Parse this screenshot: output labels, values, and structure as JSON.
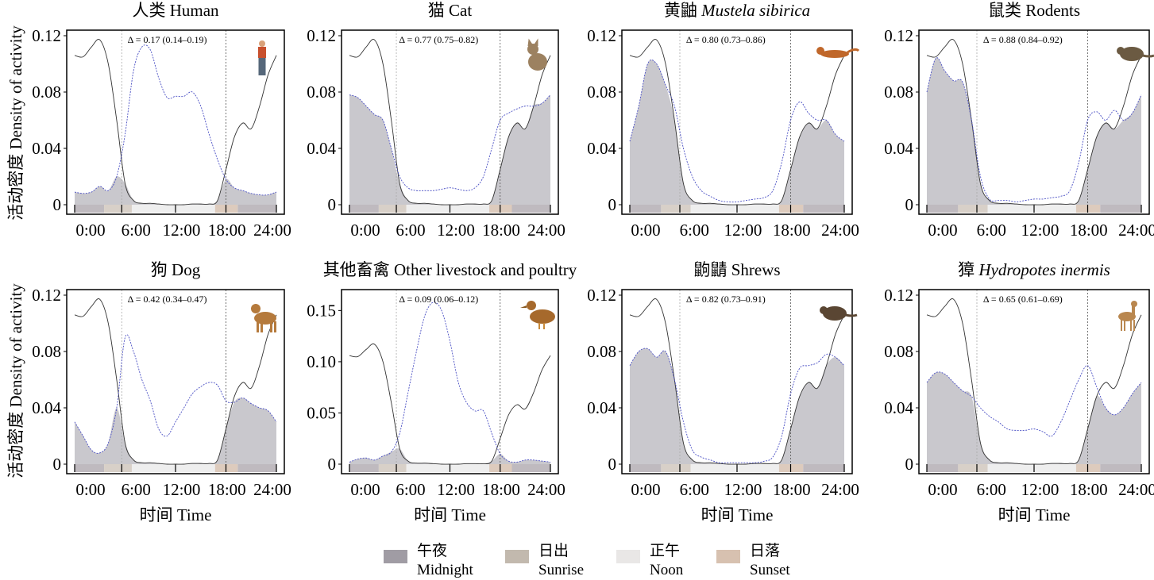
{
  "y_axis_label": "活动密度 Density of activity",
  "x_axis_label": "时间 Time",
  "legend": [
    {
      "zh": "午夜",
      "en": "Midnight",
      "color": "#a09ca4"
    },
    {
      "zh": "日出",
      "en": "Sunrise",
      "color": "#c2b9ae"
    },
    {
      "zh": "正午",
      "en": "Noon",
      "color": "#e9e7e6"
    },
    {
      "zh": "日落",
      "en": "Sunset",
      "color": "#d7c1b0"
    }
  ],
  "chart_data": {
    "type": "line",
    "x_ticks": [
      "0:00",
      "6:00",
      "12:00",
      "18:00",
      "24:00"
    ],
    "x": [
      0,
      1,
      2,
      3,
      4,
      5,
      6,
      7,
      8,
      9,
      10,
      11,
      12,
      13,
      14,
      15,
      16,
      17,
      18,
      19,
      20,
      21,
      22,
      23,
      24
    ],
    "reference_series": {
      "style": "solid black",
      "values": [
        0.106,
        0.105,
        0.112,
        0.117,
        0.1,
        0.06,
        0.015,
        0.003,
        0.001,
        0.001,
        0.0005,
        0,
        0,
        0,
        0.0005,
        0.0005,
        0.0005,
        0.003,
        0.025,
        0.048,
        0.058,
        0.054,
        0.07,
        0.092,
        0.106
      ]
    },
    "sunrise_hour": 5.6,
    "sunset_hour": 18,
    "period_bar": [
      {
        "period": "Midnight",
        "from": 0,
        "to": 3.5
      },
      {
        "period": "Sunrise",
        "from": 3.5,
        "to": 6.8
      },
      {
        "period": "Noon",
        "from": 6.8,
        "to": 16.7
      },
      {
        "period": "Sunset",
        "from": 16.7,
        "to": 19.4
      },
      {
        "period": "Midnight",
        "from": 19.4,
        "to": 24
      }
    ],
    "panels": [
      {
        "title_zh": "人类",
        "title_en": "Human",
        "italic": false,
        "delta": "Δ = 0.17 (0.14–0.19)",
        "ylim": [
          0,
          0.12
        ],
        "yticks": [
          "0",
          "0.04",
          "0.08",
          "0.12"
        ],
        "ytick_values": [
          0,
          0.04,
          0.08,
          0.12
        ],
        "icon": "human-icon",
        "icon_color": "#c8502e",
        "values": [
          0.009,
          0.008,
          0.009,
          0.013,
          0.01,
          0.02,
          0.05,
          0.095,
          0.112,
          0.11,
          0.09,
          0.076,
          0.077,
          0.077,
          0.08,
          0.07,
          0.05,
          0.032,
          0.018,
          0.012,
          0.01,
          0.008,
          0.007,
          0.007,
          0.009
        ]
      },
      {
        "title_zh": "猫",
        "title_en": "Cat",
        "italic": false,
        "delta": "Δ = 0.77 (0.75–0.82)",
        "ylim": [
          0,
          0.12
        ],
        "yticks": [
          "0",
          "0.04",
          "0.08",
          "0.12"
        ],
        "ytick_values": [
          0,
          0.04,
          0.08,
          0.12
        ],
        "icon": "cat-icon",
        "icon_color": "#9c8160",
        "values": [
          0.078,
          0.076,
          0.07,
          0.064,
          0.06,
          0.04,
          0.02,
          0.012,
          0.01,
          0.01,
          0.01,
          0.011,
          0.012,
          0.011,
          0.01,
          0.012,
          0.02,
          0.04,
          0.06,
          0.065,
          0.068,
          0.07,
          0.07,
          0.072,
          0.078
        ]
      },
      {
        "title_zh": "黄鼬",
        "title_en": "Mustela sibirica",
        "italic": true,
        "delta": "Δ = 0.80 (0.73–0.86)",
        "ylim": [
          0,
          0.12
        ],
        "yticks": [
          "0",
          "0.04",
          "0.08",
          "0.12"
        ],
        "ytick_values": [
          0,
          0.04,
          0.08,
          0.12
        ],
        "icon": "weasel-icon",
        "icon_color": "#c0672a",
        "values": [
          0.045,
          0.07,
          0.1,
          0.1,
          0.085,
          0.07,
          0.04,
          0.02,
          0.01,
          0.006,
          0.003,
          0.002,
          0.002,
          0.003,
          0.004,
          0.005,
          0.01,
          0.03,
          0.06,
          0.073,
          0.065,
          0.06,
          0.06,
          0.05,
          0.045
        ]
      },
      {
        "title_zh": "鼠类",
        "title_en": "Rodents",
        "italic": false,
        "delta": "Δ = 0.88 (0.84–0.92)",
        "ylim": [
          0,
          0.12
        ],
        "yticks": [
          "0",
          "0.04",
          "0.08",
          "0.12"
        ],
        "ytick_values": [
          0,
          0.04,
          0.08,
          0.12
        ],
        "icon": "rodent-icon",
        "icon_color": "#6b5a42",
        "values": [
          0.08,
          0.104,
          0.095,
          0.088,
          0.087,
          0.06,
          0.02,
          0.004,
          0.003,
          0.003,
          0.002,
          0.003,
          0.004,
          0.004,
          0.005,
          0.006,
          0.01,
          0.03,
          0.06,
          0.066,
          0.06,
          0.067,
          0.06,
          0.065,
          0.078
        ]
      },
      {
        "title_zh": "狗",
        "title_en": "Dog",
        "italic": false,
        "delta": "Δ = 0.42 (0.34–0.47)",
        "ylim": [
          0,
          0.12
        ],
        "yticks": [
          "0",
          "0.04",
          "0.08",
          "0.12"
        ],
        "ytick_values": [
          0,
          0.04,
          0.08,
          0.12
        ],
        "icon": "dog-icon",
        "icon_color": "#b57a3c",
        "values": [
          0.03,
          0.02,
          0.01,
          0.008,
          0.015,
          0.04,
          0.09,
          0.08,
          0.06,
          0.045,
          0.025,
          0.02,
          0.03,
          0.04,
          0.05,
          0.055,
          0.058,
          0.056,
          0.045,
          0.044,
          0.047,
          0.043,
          0.04,
          0.038,
          0.03
        ]
      },
      {
        "title_zh": "其他畜禽",
        "title_en": "Other livestock and poultry",
        "italic": false,
        "delta": "Δ = 0.09 (0.06–0.12)",
        "ylim": [
          0,
          0.165
        ],
        "yticks": [
          "0",
          "0.05",
          "0.10",
          "0.15"
        ],
        "ytick_values": [
          0,
          0.05,
          0.1,
          0.15
        ],
        "icon": "duck-icon",
        "icon_color": "#a6692c",
        "values": [
          0.002,
          0.005,
          0.006,
          0.004,
          0.008,
          0.012,
          0.03,
          0.07,
          0.11,
          0.145,
          0.158,
          0.15,
          0.12,
          0.08,
          0.06,
          0.052,
          0.052,
          0.03,
          0.01,
          0.003,
          0.002,
          0.004,
          0.004,
          0.003,
          0.002
        ]
      },
      {
        "title_zh": "鼩鼱",
        "title_en": "Shrews",
        "italic": false,
        "delta": "Δ = 0.82 (0.73–0.91)",
        "ylim": [
          0,
          0.12
        ],
        "yticks": [
          "0",
          "0.04",
          "0.08",
          "0.12"
        ],
        "ytick_values": [
          0,
          0.04,
          0.08,
          0.12
        ],
        "icon": "shrew-icon",
        "icon_color": "#5a4633",
        "values": [
          0.07,
          0.08,
          0.082,
          0.076,
          0.08,
          0.06,
          0.03,
          0.01,
          0.005,
          0.003,
          0.001,
          0.001,
          0.001,
          0.001,
          0.001,
          0.002,
          0.005,
          0.02,
          0.05,
          0.068,
          0.07,
          0.072,
          0.078,
          0.076,
          0.07
        ]
      },
      {
        "title_zh": "獐",
        "title_en": "Hydropotes inermis",
        "italic": true,
        "delta": "Δ = 0.65 (0.61–0.69)",
        "ylim": [
          0,
          0.12
        ],
        "yticks": [
          "0",
          "0.04",
          "0.08",
          "0.12"
        ],
        "ytick_values": [
          0,
          0.04,
          0.08,
          0.12
        ],
        "icon": "deer-icon",
        "icon_color": "#b9874f",
        "values": [
          0.058,
          0.065,
          0.064,
          0.058,
          0.052,
          0.048,
          0.04,
          0.034,
          0.03,
          0.025,
          0.024,
          0.024,
          0.025,
          0.023,
          0.02,
          0.03,
          0.045,
          0.06,
          0.07,
          0.055,
          0.04,
          0.035,
          0.04,
          0.05,
          0.058
        ]
      }
    ]
  }
}
